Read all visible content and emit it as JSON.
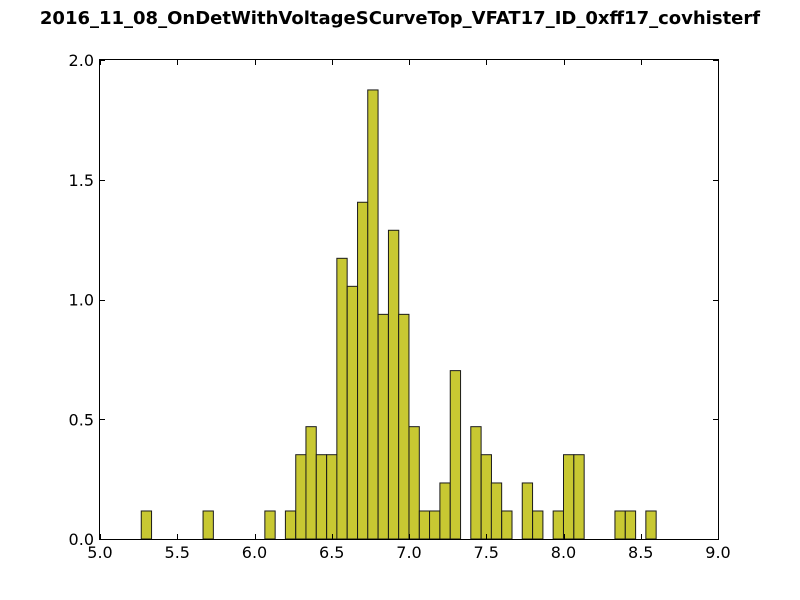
{
  "chart_data": {
    "type": "bar",
    "title": "2016_11_08_OnDetWithVoltageSCurveTop_VFAT17_ID_0xff17_covhisterf",
    "xlabel": "",
    "ylabel": "",
    "xlim": [
      5.0,
      9.0
    ],
    "ylim": [
      0.0,
      2.0
    ],
    "bin_width": 0.0667,
    "bar_color": "#c8c832",
    "edge_color": "#1a1a1a",
    "grid": false,
    "xticks": [
      5.0,
      5.5,
      6.0,
      6.5,
      7.0,
      7.5,
      8.0,
      8.5,
      9.0
    ],
    "xtick_labels": [
      "5.0",
      "5.5",
      "6.0",
      "6.5",
      "7.0",
      "7.5",
      "8.0",
      "8.5",
      "9.0"
    ],
    "yticks": [
      0.0,
      0.5,
      1.0,
      1.5,
      2.0
    ],
    "ytick_labels": [
      "0.0",
      "0.5",
      "1.0",
      "1.5",
      "2.0"
    ],
    "bins": [
      {
        "x": 5.267,
        "y": 0.117
      },
      {
        "x": 5.667,
        "y": 0.117
      },
      {
        "x": 6.067,
        "y": 0.117
      },
      {
        "x": 6.2,
        "y": 0.117
      },
      {
        "x": 6.267,
        "y": 0.352
      },
      {
        "x": 6.333,
        "y": 0.469
      },
      {
        "x": 6.4,
        "y": 0.352
      },
      {
        "x": 6.467,
        "y": 0.352
      },
      {
        "x": 6.533,
        "y": 1.172
      },
      {
        "x": 6.6,
        "y": 1.055
      },
      {
        "x": 6.667,
        "y": 1.406
      },
      {
        "x": 6.733,
        "y": 1.875
      },
      {
        "x": 6.8,
        "y": 0.938
      },
      {
        "x": 6.867,
        "y": 1.289
      },
      {
        "x": 6.933,
        "y": 0.938
      },
      {
        "x": 7.0,
        "y": 0.469
      },
      {
        "x": 7.067,
        "y": 0.117
      },
      {
        "x": 7.133,
        "y": 0.117
      },
      {
        "x": 7.2,
        "y": 0.234
      },
      {
        "x": 7.267,
        "y": 0.703
      },
      {
        "x": 7.4,
        "y": 0.469
      },
      {
        "x": 7.467,
        "y": 0.352
      },
      {
        "x": 7.533,
        "y": 0.234
      },
      {
        "x": 7.6,
        "y": 0.117
      },
      {
        "x": 7.733,
        "y": 0.234
      },
      {
        "x": 7.8,
        "y": 0.117
      },
      {
        "x": 7.933,
        "y": 0.117
      },
      {
        "x": 8.0,
        "y": 0.352
      },
      {
        "x": 8.067,
        "y": 0.352
      },
      {
        "x": 8.333,
        "y": 0.117
      },
      {
        "x": 8.4,
        "y": 0.117
      },
      {
        "x": 8.533,
        "y": 0.117
      }
    ]
  }
}
